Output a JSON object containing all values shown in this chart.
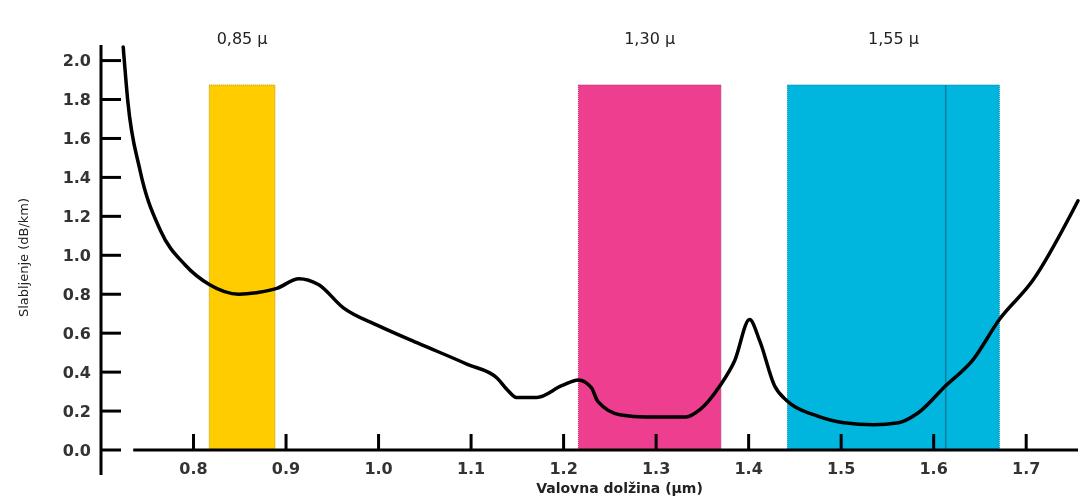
{
  "chart_data": {
    "type": "line",
    "xlabel": "Valovna dolžina (μm)",
    "ylabel": "Slabljenje (dB/km)",
    "x": [
      0.724,
      0.729,
      0.742,
      0.764,
      0.791,
      0.817,
      0.849,
      0.871,
      0.89,
      0.914,
      0.935,
      0.962,
      0.999,
      1.042,
      1.096,
      1.128,
      1.139,
      1.149,
      1.171,
      1.198,
      1.216,
      1.23,
      1.237,
      1.262,
      1.289,
      1.332,
      1.348,
      1.369,
      1.385,
      1.401,
      1.412,
      1.428,
      1.442,
      1.471,
      1.503,
      1.535,
      1.562,
      1.583,
      1.613,
      1.642,
      1.671,
      1.707,
      1.756
    ],
    "series": [
      {
        "color": "#000000",
        "values": [
          2.07,
          1.79,
          1.44,
          1.13,
          0.95,
          0.85,
          0.8,
          0.81,
          0.83,
          0.88,
          0.85,
          0.73,
          0.64,
          0.55,
          0.44,
          0.37,
          0.31,
          0.27,
          0.27,
          0.33,
          0.36,
          0.32,
          0.25,
          0.18,
          0.17,
          0.17,
          0.21,
          0.33,
          0.46,
          0.67,
          0.56,
          0.33,
          0.25,
          0.18,
          0.14,
          0.13,
          0.14,
          0.19,
          0.33,
          0.46,
          0.67,
          0.87,
          1.28
        ]
      }
    ],
    "xlim": [
      0.7,
      1.756
    ],
    "ylim": [
      0,
      2.08
    ],
    "xticks": [
      0.8,
      0.9,
      {
        "value": 1.0,
        "label": "1.0"
      },
      1.1,
      1.2,
      1.3,
      1.4,
      1.5,
      1.6,
      1.7
    ],
    "yticks": [
      {
        "value": 0,
        "label": "0.0"
      },
      0.2,
      0.4,
      0.6,
      0.8,
      {
        "value": 1.0,
        "label": "1.0"
      },
      1.2,
      1.4,
      1.6,
      1.8,
      {
        "value": 2.0,
        "label": "2.0"
      }
    ],
    "bands": [
      {
        "axis": "x",
        "from": 0.817,
        "to": 0.888,
        "label": "0,85 μ",
        "color": "#ffcc00"
      },
      {
        "axis": "x",
        "from": 1.216,
        "to": 1.37,
        "label": "1,30 μ",
        "color": "#ee3e8f"
      },
      {
        "axis": "x",
        "from": 1.442,
        "to": 1.671,
        "label": "1,55 μ",
        "color": "#00b5de"
      }
    ],
    "ref_lines": [
      {
        "axis": "x",
        "value": 1.613,
        "color": "#0a7fa0",
        "line_style": "solid"
      }
    ],
    "grid": false,
    "marker": "none",
    "line_style": "solid"
  }
}
